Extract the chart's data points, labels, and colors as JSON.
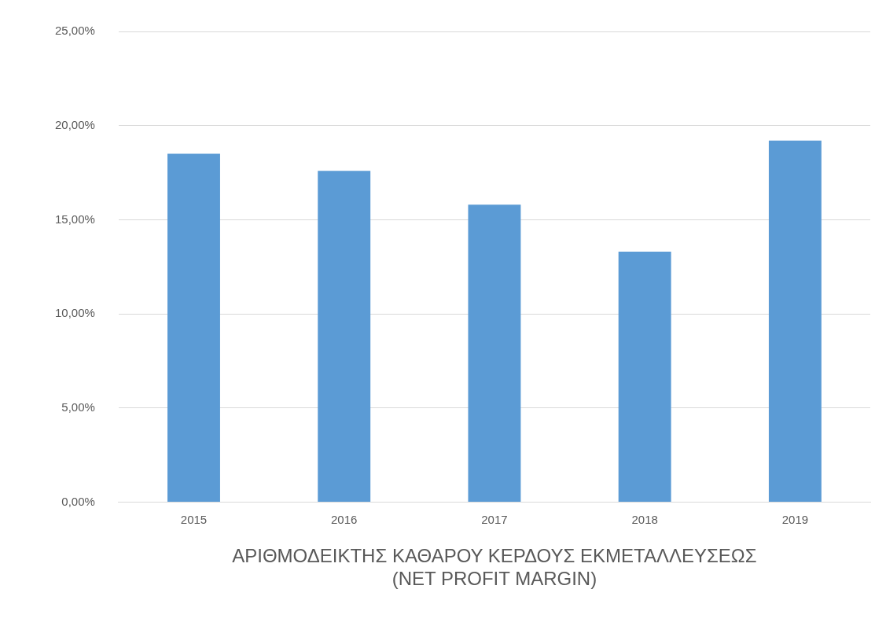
{
  "chart_data": {
    "type": "bar",
    "xlabel": "ΑΡΙΘΜΟΔΕΙΚΤΗΣ ΚΑΘΑΡΟΥ ΚΕΡΔΟΥΣ ΕΚΜΕΤΑΛΛΕΥΣΕΩΣ\n(NET PROFIT MARGIN)",
    "categories": [
      "2015",
      "2016",
      "2017",
      "2018",
      "2019"
    ],
    "values": [
      18.5,
      17.6,
      15.8,
      13.3,
      19.2
    ],
    "color": "#5b9bd5",
    "ylim": [
      0,
      25
    ],
    "yticks": [
      {
        "value": 0,
        "label": "0,00%"
      },
      {
        "value": 5,
        "label": "5,00%"
      },
      {
        "value": 10,
        "label": "10,00%"
      },
      {
        "value": 15,
        "label": "15,00%"
      },
      {
        "value": 20,
        "label": "20,00%"
      },
      {
        "value": 25,
        "label": "25,00%"
      }
    ],
    "grid": "y",
    "legend": false
  }
}
